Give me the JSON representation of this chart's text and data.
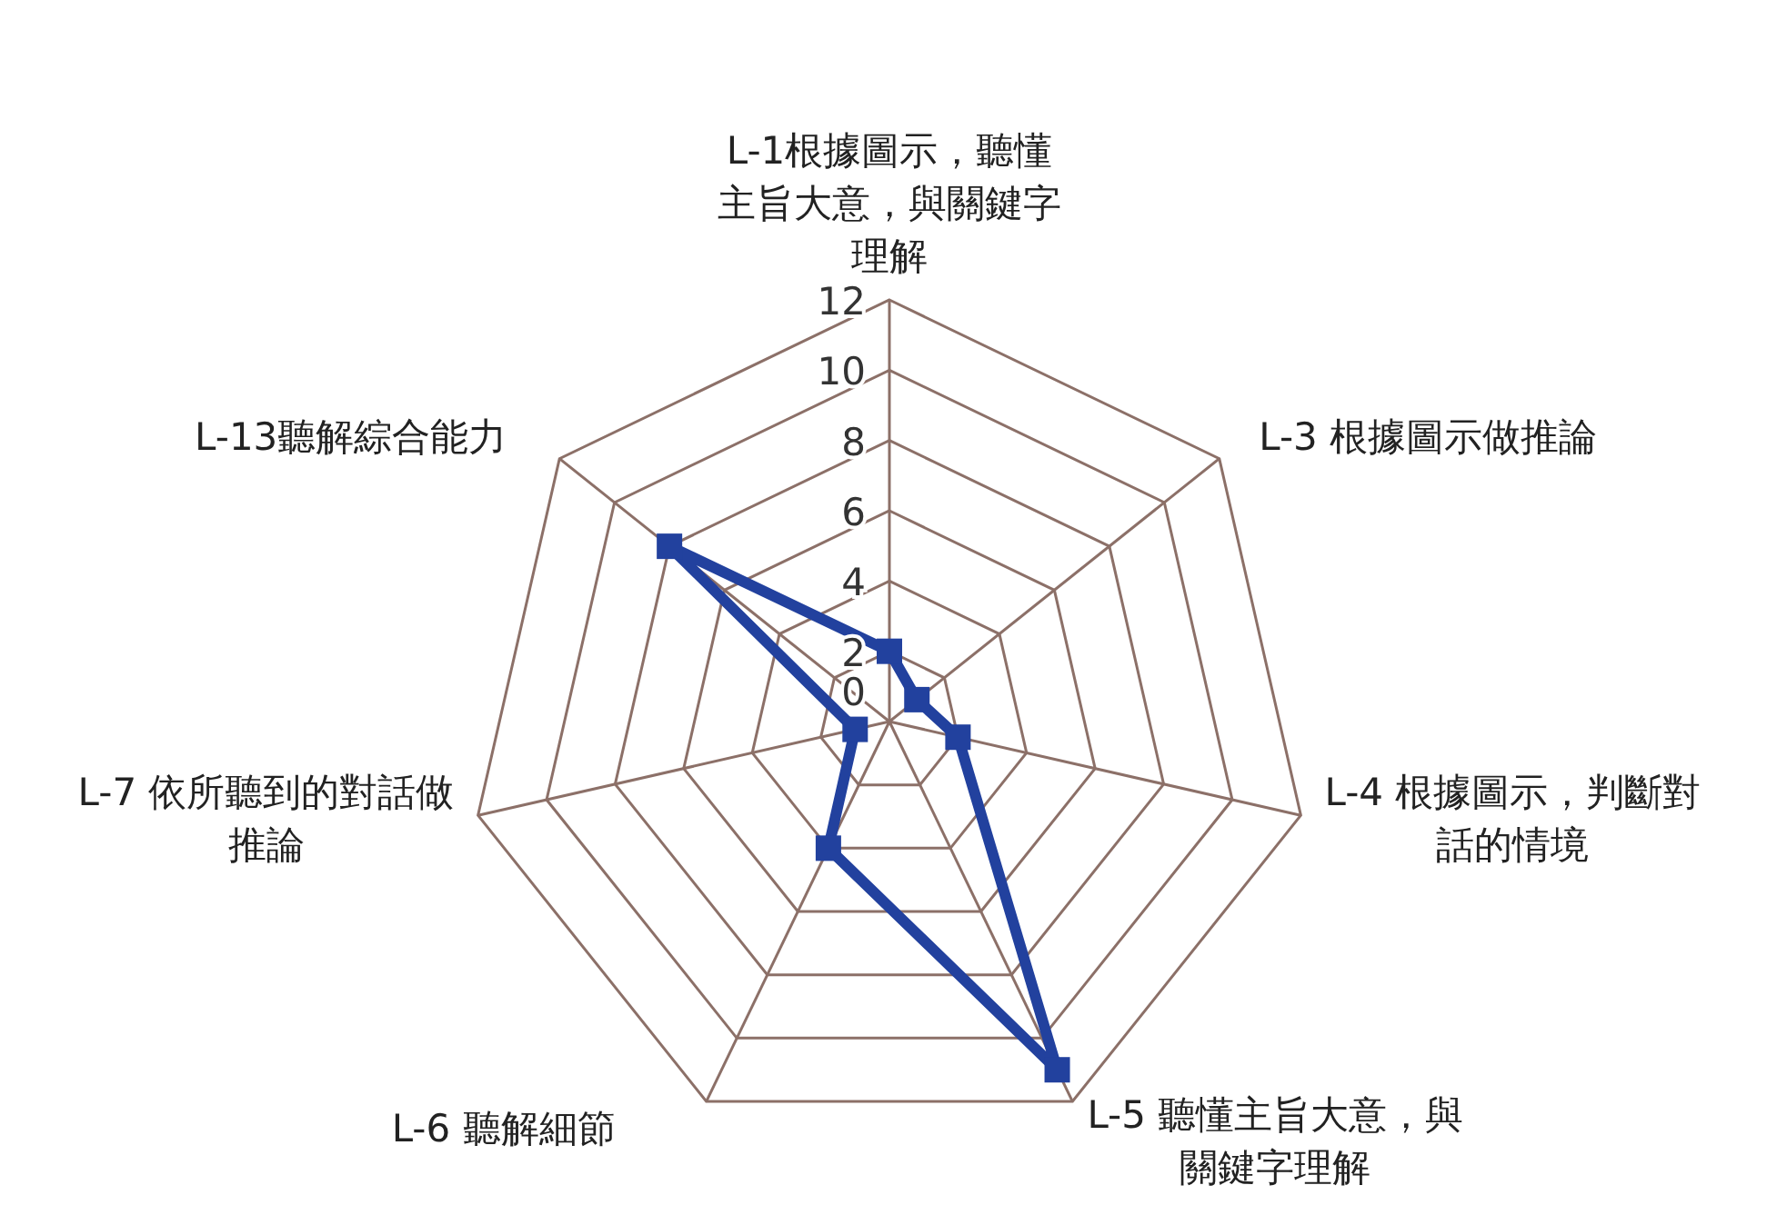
{
  "chart_data": {
    "type": "radar",
    "categories": [
      "L-1根據圖示，聽懂主旨大意，與關鍵字理解",
      "L-3 根據圖示做推論",
      "L-4 根據圖示，判斷對話的情境",
      "L-5 聽懂主旨大意，與關鍵字理解",
      "L-6 聽解細節",
      "L-7 依所聽到的對話做推論",
      "L-13聽解綜合能力"
    ],
    "series": [
      {
        "color": "#22419e",
        "values": [
          2,
          1,
          2,
          11,
          4,
          1,
          8
        ]
      }
    ],
    "ylim": [
      0,
      12
    ],
    "yticks": [
      0,
      2,
      4,
      6,
      8,
      10,
      12
    ],
    "grid": true,
    "marker": "square"
  }
}
